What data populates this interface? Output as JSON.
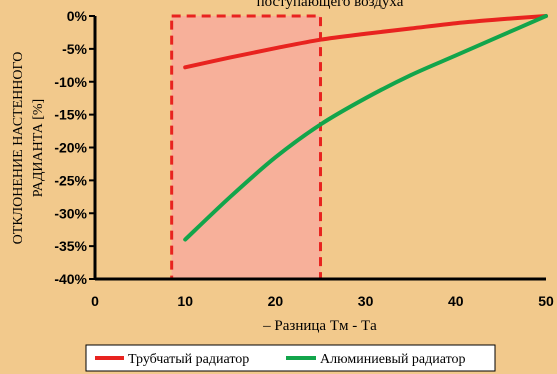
{
  "chart_data": {
    "type": "line",
    "title": "поступающего воздуха",
    "xlabel": "– Разница Tм - Tа",
    "ylabel": "ОТКЛОНЕНИЕ НАСТЕННОГО РАДИАНТА [%]",
    "xlim": [
      0,
      50
    ],
    "ylim": [
      -40,
      0
    ],
    "x_ticks": [
      "0",
      "10",
      "20",
      "30",
      "40",
      "50"
    ],
    "y_ticks": [
      "0%",
      "-5%",
      "-10%",
      "-15%",
      "-20%",
      "-25%",
      "-30%",
      "-35%",
      "-40%"
    ],
    "grid": false,
    "legend_position": "bottom",
    "highlight_range": [
      8.5,
      25
    ],
    "series": [
      {
        "name": "Трубчатый радиатор",
        "color": "#E8231F",
        "x": [
          10,
          15,
          20,
          25,
          30,
          35,
          40,
          45,
          50
        ],
        "y": [
          -7.8,
          -6.3,
          -4.9,
          -3.6,
          -2.7,
          -1.9,
          -1.1,
          -0.5,
          0
        ]
      },
      {
        "name": "Алюминиевый радиатор",
        "color": "#12A54B",
        "x": [
          10,
          15,
          20,
          25,
          30,
          35,
          40,
          45,
          50
        ],
        "y": [
          -34,
          -27.5,
          -21.5,
          -16.5,
          -12.5,
          -9,
          -6,
          -3,
          0
        ]
      }
    ]
  }
}
